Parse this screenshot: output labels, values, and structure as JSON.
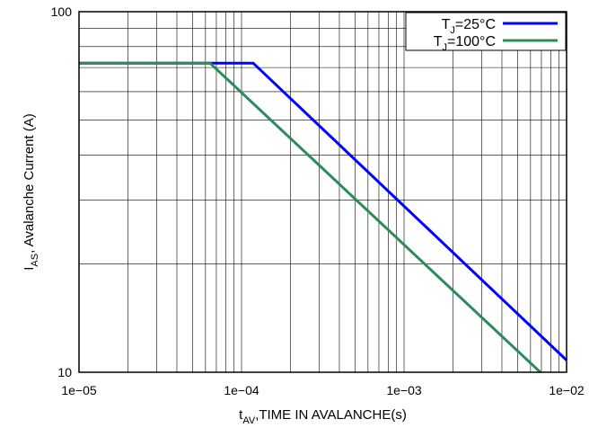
{
  "chart_data": {
    "type": "line",
    "title": "",
    "x_axis": {
      "label_main": "t",
      "label_sub": "AV",
      "label_rest": ",TIME IN AVALANCHE(s)",
      "scale": "log",
      "range": [
        1e-05,
        0.01
      ],
      "tick_values": [
        1e-05,
        0.0001,
        0.001,
        0.01
      ],
      "tick_labels": [
        "1e−05",
        "1e−04",
        "1e−03",
        "1e−02"
      ]
    },
    "y_axis": {
      "label_main": "I",
      "label_sub": "AS",
      "label_rest": ", Avalanche Current (A)",
      "scale": "log",
      "range": [
        10,
        100
      ],
      "tick_values": [
        10,
        100
      ],
      "tick_labels": [
        "10",
        "100"
      ]
    },
    "grid": true,
    "legend_position": "top-right",
    "series": [
      {
        "name_main": "T",
        "name_sub": "J",
        "name_rest": "=25°C",
        "color": "#0000ff",
        "x": [
          1e-05,
          0.000118,
          0.01
        ],
        "y": [
          72,
          72,
          10.8
        ]
      },
      {
        "name_main": "T",
        "name_sub": "J",
        "name_rest": "=100°C",
        "color": "#2e8b57",
        "x": [
          1e-05,
          6.4e-05,
          0.0069
        ],
        "y": [
          72,
          72,
          10
        ]
      }
    ]
  }
}
